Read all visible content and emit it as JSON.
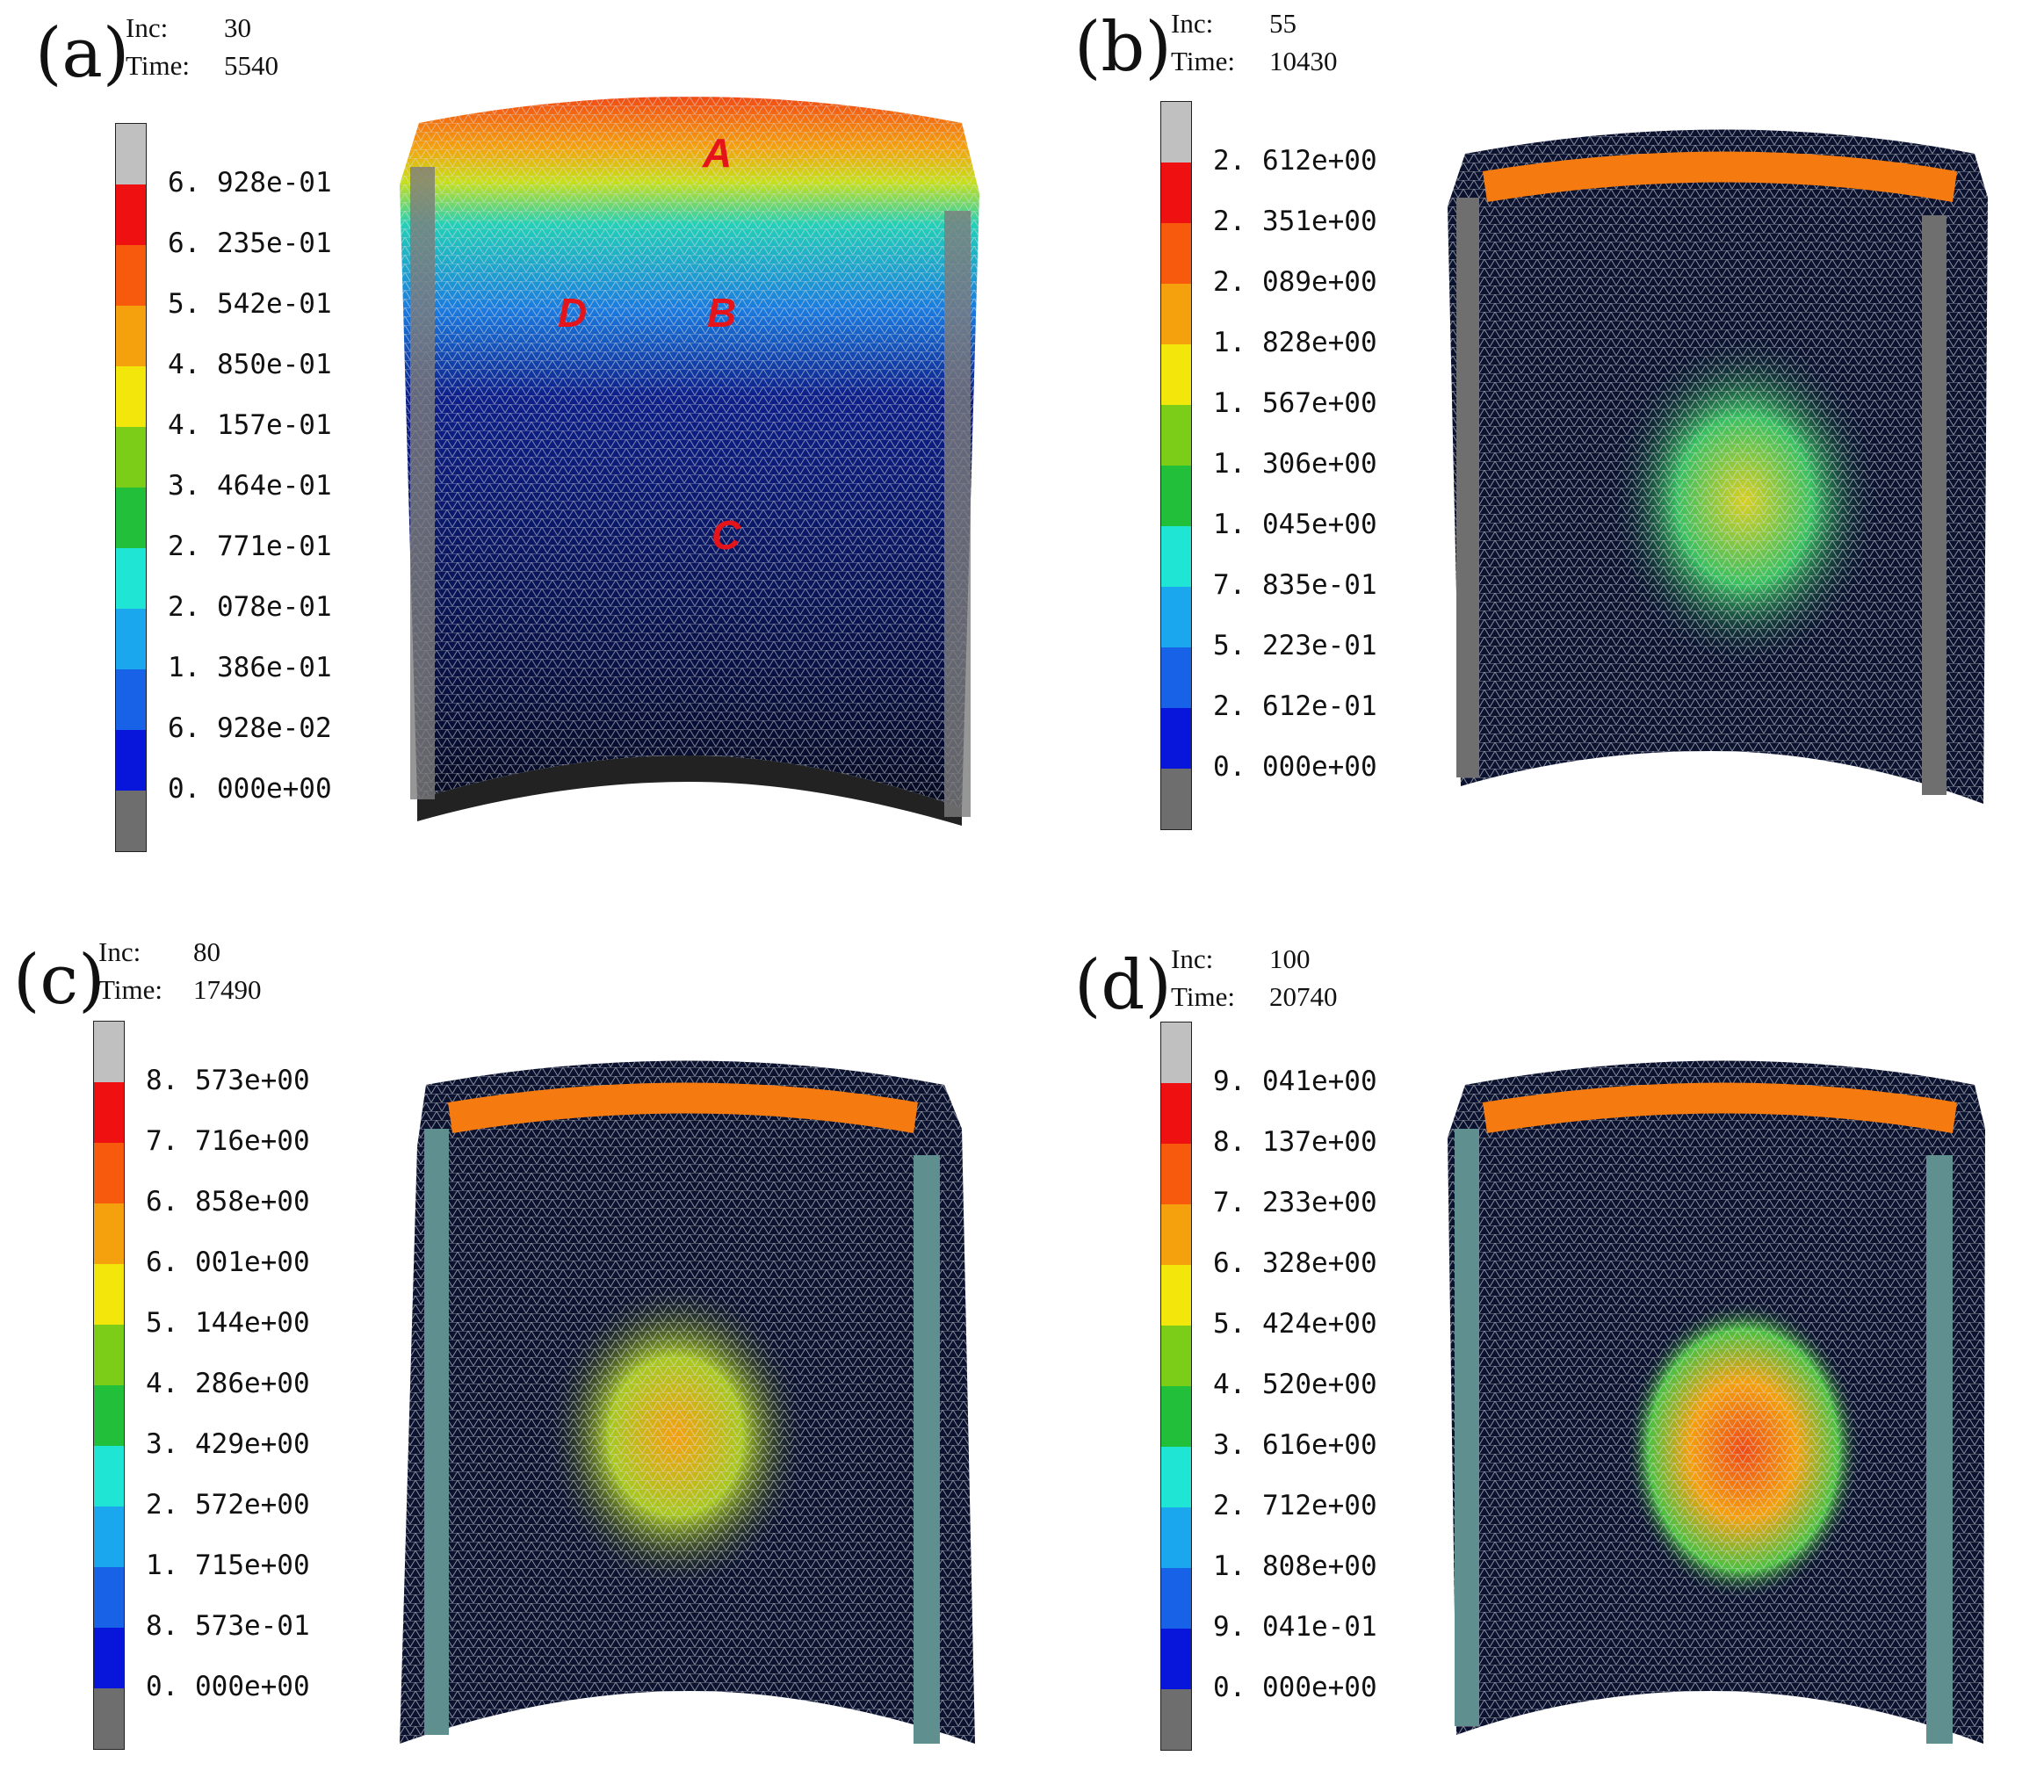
{
  "legend_colors": [
    "#c0c0c0",
    "#ef1111",
    "#f75a0c",
    "#f5a00d",
    "#f3e60a",
    "#7ccd18",
    "#22c03a",
    "#1fe6d4",
    "#1aa7ee",
    "#1762e7",
    "#0716da",
    "#6e6e6e"
  ],
  "panels": [
    {
      "label": "(a)",
      "inc_key": "Inc:",
      "inc": "30",
      "time_key": "Time:",
      "time": "5540",
      "ticks": [
        "6. 928e-01",
        "6. 235e-01",
        "5. 542e-01",
        "4. 850e-01",
        "4. 157e-01",
        "3. 464e-01",
        "2. 771e-01",
        "2. 078e-01",
        "1. 386e-01",
        "6. 928e-02",
        "0. 000e+00"
      ],
      "annotations": [
        "A",
        "B",
        "C",
        "D"
      ]
    },
    {
      "label": "(b)",
      "inc_key": "Inc:",
      "inc": "55",
      "time_key": "Time:",
      "time": "10430",
      "ticks": [
        "2. 612e+00",
        "2. 351e+00",
        "2. 089e+00",
        "1. 828e+00",
        "1. 567e+00",
        "1. 306e+00",
        "1. 045e+00",
        "7. 835e-01",
        "5. 223e-01",
        "2. 612e-01",
        "0. 000e+00"
      ]
    },
    {
      "label": "(c)",
      "inc_key": "Inc:",
      "inc": "80",
      "time_key": "Time:",
      "time": "17490",
      "ticks": [
        "8. 573e+00",
        "7. 716e+00",
        "6. 858e+00",
        "6. 001e+00",
        "5. 144e+00",
        "4. 286e+00",
        "3. 429e+00",
        "2. 572e+00",
        "1. 715e+00",
        "8. 573e-01",
        "0. 000e+00"
      ]
    },
    {
      "label": "(d)",
      "inc_key": "Inc:",
      "inc": "100",
      "time_key": "Time:",
      "time": "20740",
      "ticks": [
        "9. 041e+00",
        "8. 137e+00",
        "7. 233e+00",
        "6. 328e+00",
        "5. 424e+00",
        "4. 520e+00",
        "3. 616e+00",
        "2. 712e+00",
        "1. 808e+00",
        "9. 041e-01",
        "0. 000e+00"
      ]
    }
  ]
}
